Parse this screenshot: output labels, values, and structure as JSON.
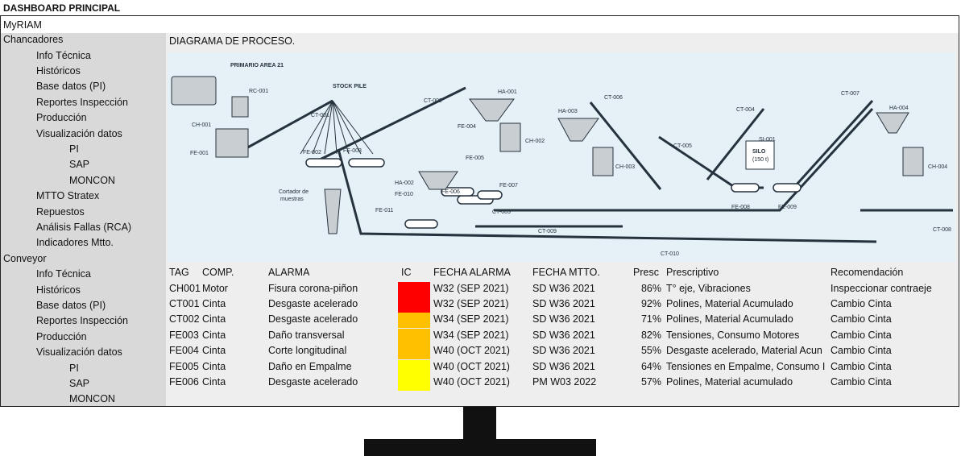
{
  "title": "DASHBOARD PRINCIPAL",
  "brand": "MyRIAM",
  "sidebar": {
    "sections": [
      {
        "label": "Chancadores",
        "items": [
          "Info Técnica",
          "Históricos",
          "Base datos (PI)",
          "Reportes Inspección",
          "Producción",
          "Visualización datos"
        ],
        "subitems": [
          "PI",
          "SAP",
          "MONCON"
        ],
        "more": [
          "MTTO Stratex",
          "Repuestos",
          "Análisis Fallas (RCA)",
          "Indicadores Mtto."
        ]
      },
      {
        "label": "Conveyor",
        "items": [
          "Info Técnica",
          "Históricos",
          "Base datos (PI)",
          "Reportes Inspección",
          "Producción",
          "Visualización datos"
        ],
        "subitems": [
          "PI",
          "SAP",
          "MONCON"
        ]
      }
    ]
  },
  "main": {
    "diagram_title": "DIAGRAMA DE PROCESO.",
    "diagram_labels": {
      "area": "PRIMARIO AREA 21",
      "stockpile": "STOCK PILE",
      "silo": "SILO",
      "silo_sub": "(150 t)",
      "cortador_1": "Cortador de",
      "cortador_2": "muestras",
      "rc001": "RC-001",
      "ch001": "CH-001",
      "fe001": "FE-001",
      "ct001": "CT-001",
      "fe002": "FE-002",
      "fe003": "FE-003",
      "ct002": "CT-002",
      "ha001": "HA-001",
      "fe004": "FE-004",
      "ch002": "CH-002",
      "fe005": "FE-005",
      "ha002": "HA-002",
      "fe010": "FE-010",
      "fe006": "FE-006",
      "fe007": "FE-007",
      "fe011": "FE-011",
      "ct003": "CT-003",
      "ha003": "HA-003",
      "ct006": "CT-006",
      "ch003": "CH-003",
      "ct005": "CT-005",
      "ct004": "CT-004",
      "si001": "SI-001",
      "fe008": "FE-008",
      "fe009": "FE-009",
      "ct007": "CT-007",
      "ha004": "HA-004",
      "ch004": "CH-004",
      "ct008": "CT-008",
      "ct009": "CT-009",
      "ct010": "CT-010"
    },
    "table": {
      "headers": [
        "TAG",
        "COMP.",
        "ALARMA",
        "IC",
        "FECHA ALARMA",
        "FECHA MTTO.",
        "Presc",
        "Prescriptivo",
        "Recomendación"
      ],
      "rows": [
        {
          "tag": "CH001",
          "comp": "Motor",
          "alarma": "Fisura corona-piñon",
          "ic_color": "#ff0000",
          "fecha_alarma": "W32 (SEP 2021)",
          "fecha_mtto": "SD W36 2021",
          "presc": "86%",
          "prescriptivo": "T° eje, Vibraciones",
          "recomendacion": "Inspeccionar contraeje"
        },
        {
          "tag": "CT001",
          "comp": "Cinta",
          "alarma": "Desgaste acelerado",
          "ic_color": "#ff0000",
          "fecha_alarma": "W32 (SEP 2021)",
          "fecha_mtto": "SD W36 2021",
          "presc": "92%",
          "prescriptivo": "Polines, Material Acumulado",
          "recomendacion": "Cambio Cinta"
        },
        {
          "tag": "CT002",
          "comp": "Cinta",
          "alarma": "Desgaste acelerado",
          "ic_color": "#ffc000",
          "fecha_alarma": "W34 (SEP 2021)",
          "fecha_mtto": "SD W36 2021",
          "presc": "71%",
          "prescriptivo": "Polines, Material Acumulado",
          "recomendacion": "Cambio Cinta"
        },
        {
          "tag": "FE003",
          "comp": "Cinta",
          "alarma": "Daño transversal",
          "ic_color": "#ffc000",
          "fecha_alarma": "W34 (SEP 2021)",
          "fecha_mtto": "SD W36 2021",
          "presc": "82%",
          "prescriptivo": "Tensiones, Consumo Motores",
          "recomendacion": "Cambio Cinta"
        },
        {
          "tag": "FE004",
          "comp": "Cinta",
          "alarma": "Corte longitudinal",
          "ic_color": "#ffc000",
          "fecha_alarma": "W40 (OCT 2021)",
          "fecha_mtto": "SD W36 2021",
          "presc": "55%",
          "prescriptivo": "Desgaste acelerado, Material Acun",
          "recomendacion": "Cambio Cinta"
        },
        {
          "tag": "FE005",
          "comp": "Cinta",
          "alarma": "Daño en Empalme",
          "ic_color": "#ffff00",
          "fecha_alarma": "W40 (OCT 2021)",
          "fecha_mtto": "SD W36 2021",
          "presc": "64%",
          "prescriptivo": "Tensiones en Empalme, Consumo I",
          "recomendacion": "Cambio Cinta"
        },
        {
          "tag": "FE006",
          "comp": "Cinta",
          "alarma": "Desgaste acelerado",
          "ic_color": "#ffff00",
          "fecha_alarma": "W40 (OCT 2021)",
          "fecha_mtto": "PM W03 2022",
          "presc": "57%",
          "prescriptivo": "Polines, Material acumulado",
          "recomendacion": "Cambio Cinta"
        }
      ]
    }
  }
}
